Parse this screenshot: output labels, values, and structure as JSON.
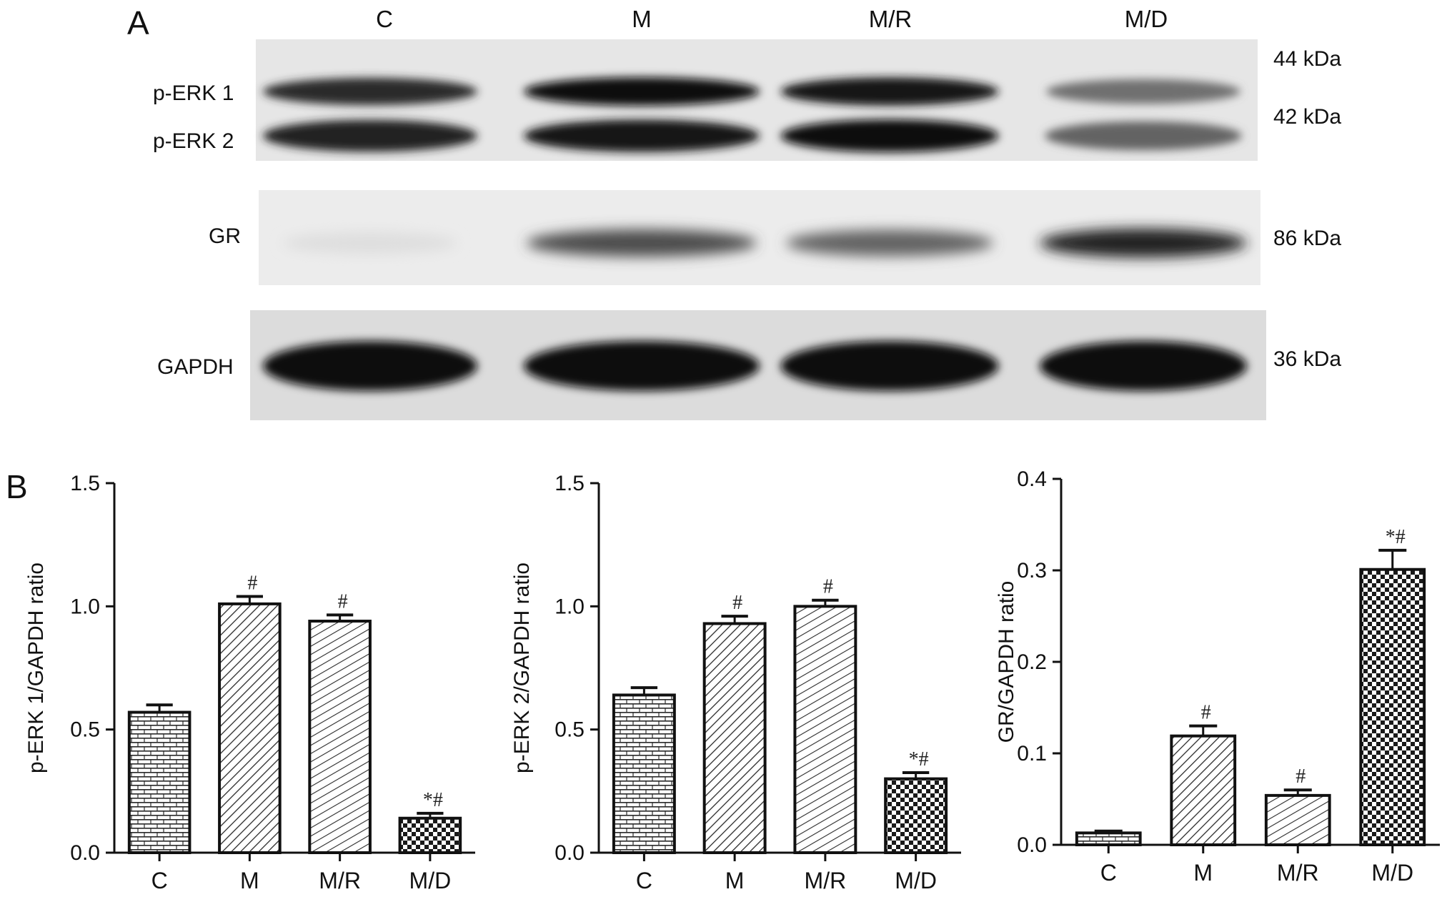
{
  "panel_a": {
    "label": "A",
    "lanes": [
      "C",
      "M",
      "M/R",
      "M/D"
    ],
    "blots": [
      {
        "proteins": [
          "p-ERK 1",
          "p-ERK 2"
        ],
        "mw": [
          "44 kDa",
          "42 kDa"
        ]
      },
      {
        "proteins": [
          "GR"
        ],
        "mw": [
          "86 kDa"
        ]
      },
      {
        "proteins": [
          "GAPDH"
        ],
        "mw": [
          "36 kDa"
        ]
      }
    ],
    "band_intensity": {
      "p-ERK 1": [
        0.85,
        1.0,
        0.95,
        0.55
      ],
      "p-ERK 2": [
        0.9,
        0.95,
        1.0,
        0.6
      ],
      "GR": [
        0.06,
        0.7,
        0.6,
        0.9
      ],
      "GAPDH": [
        1.0,
        1.0,
        1.0,
        1.0
      ]
    }
  },
  "panel_b": {
    "label": "B"
  },
  "chart_data": [
    {
      "type": "bar",
      "categories": [
        "C",
        "M",
        "M/R",
        "M/D"
      ],
      "values": [
        0.57,
        1.01,
        0.94,
        0.14
      ],
      "errors": [
        0.03,
        0.03,
        0.025,
        0.02
      ],
      "significance": [
        "",
        "#",
        "#",
        "*#"
      ],
      "xlabel": "",
      "ylabel": "p-ERK 1/GAPDH ratio",
      "ylim": [
        0,
        1.5
      ],
      "yticks": [
        "0.0",
        "0.5",
        "1.0",
        "1.5"
      ],
      "patterns": [
        "brick",
        "diagonal",
        "diagonal-fine",
        "checker"
      ]
    },
    {
      "type": "bar",
      "categories": [
        "C",
        "M",
        "M/R",
        "M/D"
      ],
      "values": [
        0.64,
        0.93,
        1.0,
        0.3
      ],
      "errors": [
        0.03,
        0.03,
        0.025,
        0.025
      ],
      "significance": [
        "",
        "#",
        "#",
        "*#"
      ],
      "xlabel": "",
      "ylabel": "p-ERK 2/GAPDH ratio",
      "ylim": [
        0,
        1.5
      ],
      "yticks": [
        "0.0",
        "0.5",
        "1.0",
        "1.5"
      ],
      "patterns": [
        "brick",
        "diagonal",
        "diagonal-fine",
        "checker"
      ]
    },
    {
      "type": "bar",
      "categories": [
        "C",
        "M",
        "M/R",
        "M/D"
      ],
      "values": [
        0.013,
        0.119,
        0.054,
        0.301
      ],
      "errors": [
        0.002,
        0.011,
        0.006,
        0.021
      ],
      "significance": [
        "",
        "#",
        "#",
        "*#"
      ],
      "xlabel": "",
      "ylabel": "GR/GAPDH ratio",
      "ylim": [
        0,
        0.4
      ],
      "yticks": [
        "0.0",
        "0.1",
        "0.2",
        "0.3",
        "0.4"
      ],
      "patterns": [
        "brick",
        "diagonal",
        "diagonal-fine",
        "checker"
      ]
    }
  ]
}
